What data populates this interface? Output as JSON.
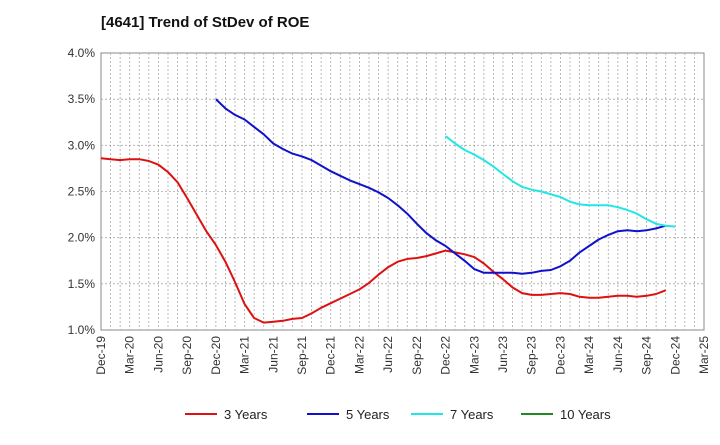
{
  "chart_data": {
    "type": "line",
    "title": "[4641]  Trend of StDev of ROE",
    "xlabel": "",
    "ylabel": "",
    "grid": true,
    "legend_position": "bottom",
    "ylim": [
      0.01,
      0.04
    ],
    "y_ticks": [
      0.01,
      0.015,
      0.02,
      0.025,
      0.03,
      0.035,
      0.04
    ],
    "y_tick_labels": [
      "1.0%",
      "1.5%",
      "2.0%",
      "2.5%",
      "3.0%",
      "3.5%",
      "4.0%"
    ],
    "x_tick_labels": [
      "Dec-19",
      "Mar-20",
      "Jun-20",
      "Sep-20",
      "Dec-20",
      "Mar-21",
      "Jun-21",
      "Sep-21",
      "Dec-21",
      "Mar-22",
      "Jun-22",
      "Sep-22",
      "Dec-22",
      "Mar-23",
      "Jun-23",
      "Sep-23",
      "Dec-23",
      "Mar-24",
      "Jun-24",
      "Sep-24",
      "Dec-24",
      "Mar-25"
    ],
    "series": [
      {
        "name": "3 Years",
        "color": "#dd1111",
        "start_month": 0,
        "values": [
          0.0286,
          0.0285,
          0.0284,
          0.0285,
          0.0285,
          0.0283,
          0.0279,
          0.0271,
          0.026,
          0.0243,
          0.0225,
          0.0207,
          0.0192,
          0.0174,
          0.0152,
          0.0128,
          0.0113,
          0.0108,
          0.0109,
          0.011,
          0.0112,
          0.0113,
          0.0118,
          0.0124,
          0.0129,
          0.0134,
          0.0139,
          0.0144,
          0.0151,
          0.016,
          0.0168,
          0.0174,
          0.0177,
          0.0178,
          0.018,
          0.0183,
          0.0186,
          0.0184,
          0.0182,
          0.0179,
          0.0172,
          0.0163,
          0.0155,
          0.0146,
          0.014,
          0.0138,
          0.0138,
          0.0139,
          0.014,
          0.0139,
          0.0136,
          0.0135,
          0.0135,
          0.0136,
          0.0137,
          0.0137,
          0.0136,
          0.0137,
          0.0139,
          0.0143
        ]
      },
      {
        "name": "5 Years",
        "color": "#1111cc",
        "start_month": 12,
        "values": [
          0.035,
          0.034,
          0.0333,
          0.0328,
          0.032,
          0.0312,
          0.0302,
          0.0296,
          0.0291,
          0.0288,
          0.0284,
          0.0278,
          0.0272,
          0.0267,
          0.0262,
          0.0258,
          0.0254,
          0.0249,
          0.0243,
          0.0235,
          0.0226,
          0.0215,
          0.0205,
          0.0197,
          0.0191,
          0.0183,
          0.0175,
          0.0166,
          0.0162,
          0.0162,
          0.0162,
          0.0162,
          0.0161,
          0.0162,
          0.0164,
          0.0165,
          0.0169,
          0.0175,
          0.0184,
          0.0191,
          0.0198,
          0.0203,
          0.0207,
          0.0208,
          0.0207,
          0.0208,
          0.021,
          0.0213
        ]
      },
      {
        "name": "7 Years",
        "color": "#22e5e5",
        "start_month": 36,
        "values": [
          0.031,
          0.0302,
          0.0295,
          0.029,
          0.0284,
          0.0277,
          0.0269,
          0.0261,
          0.0255,
          0.0252,
          0.025,
          0.0247,
          0.0244,
          0.0239,
          0.0236,
          0.0235,
          0.0235,
          0.0235,
          0.0233,
          0.023,
          0.0226,
          0.022,
          0.0215,
          0.0213,
          0.0212
        ]
      },
      {
        "name": "10 Years",
        "color": "#228822",
        "start_month": 0,
        "values": []
      }
    ]
  }
}
